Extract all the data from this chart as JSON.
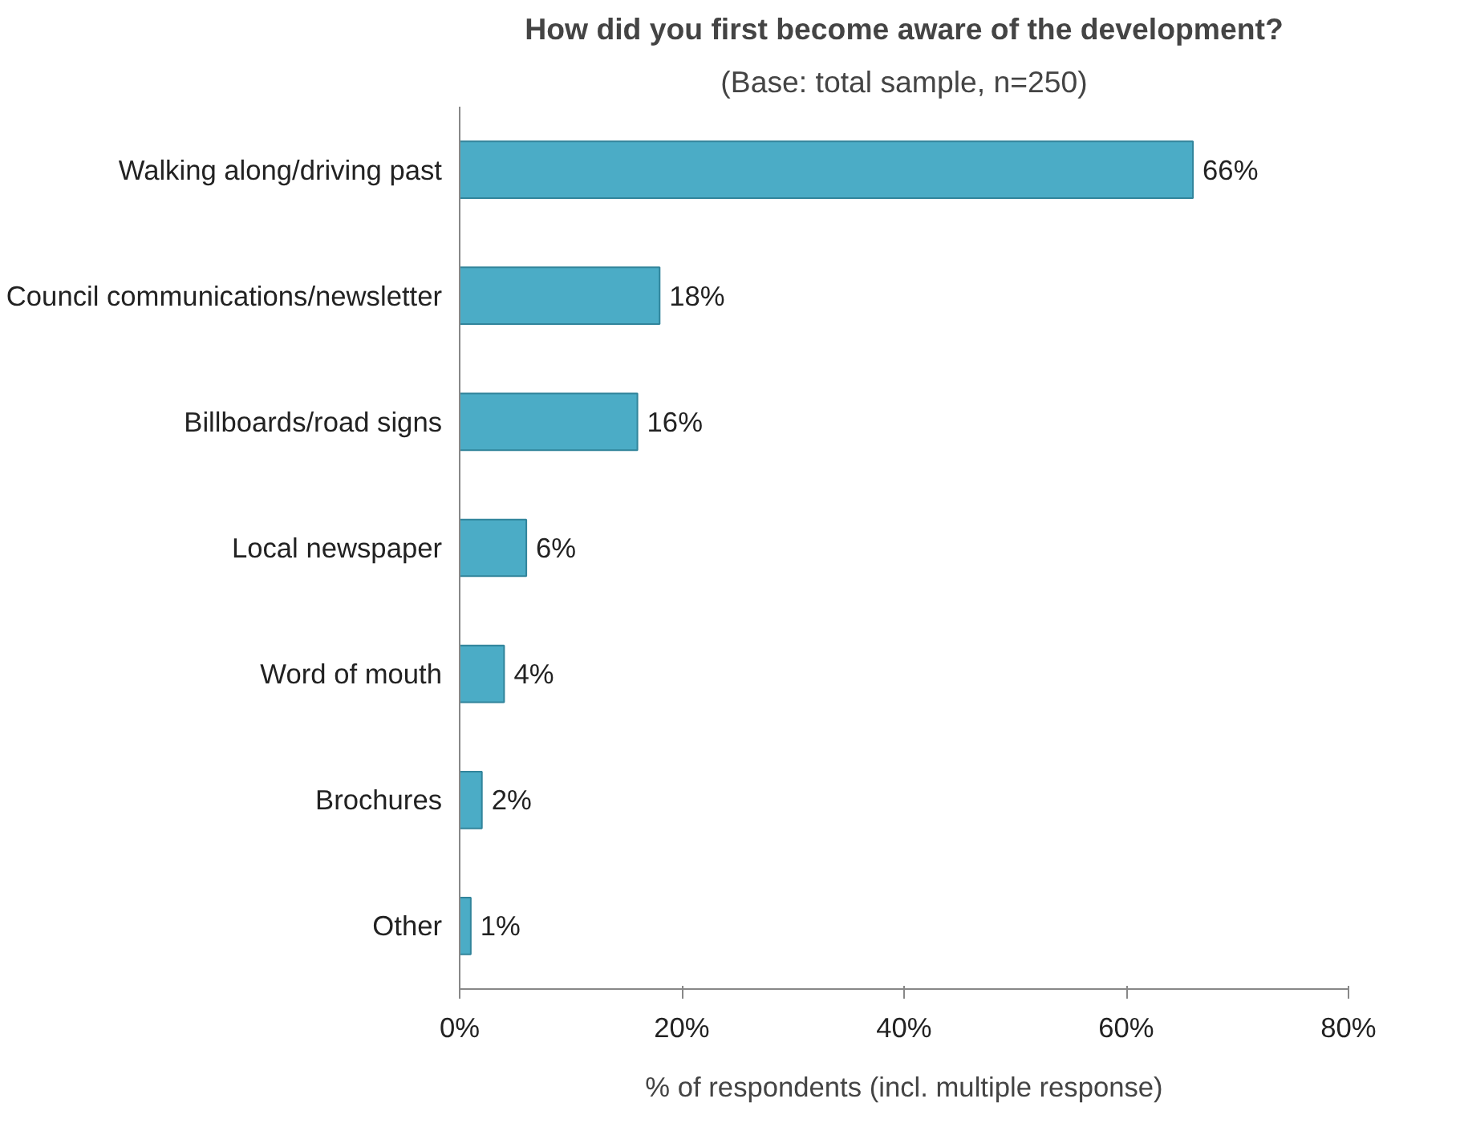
{
  "chart_data": {
    "type": "bar",
    "orientation": "horizontal",
    "title": "How did you first become aware of the development?",
    "subtitle": "(Base: total sample, n=250)",
    "xlabel": "% of respondents (incl. multiple response)",
    "categories": [
      "Walking along/driving past",
      "Council communications/newsletter",
      "Billboards/road signs",
      "Local newspaper",
      "Word of mouth",
      "Brochures",
      "Other"
    ],
    "values": [
      66,
      18,
      16,
      6,
      4,
      2,
      1
    ],
    "value_labels": [
      "66%",
      "18%",
      "16%",
      "6%",
      "4%",
      "2%",
      "1%"
    ],
    "color": "#4bacc6",
    "xlim": [
      0,
      80
    ],
    "xticks": [
      {
        "value": 0,
        "label": "0%"
      },
      {
        "value": 20,
        "label": "20%"
      },
      {
        "value": 40,
        "label": "40%"
      },
      {
        "value": 60,
        "label": "60%"
      },
      {
        "value": 80,
        "label": "80%"
      }
    ],
    "grid": false
  }
}
